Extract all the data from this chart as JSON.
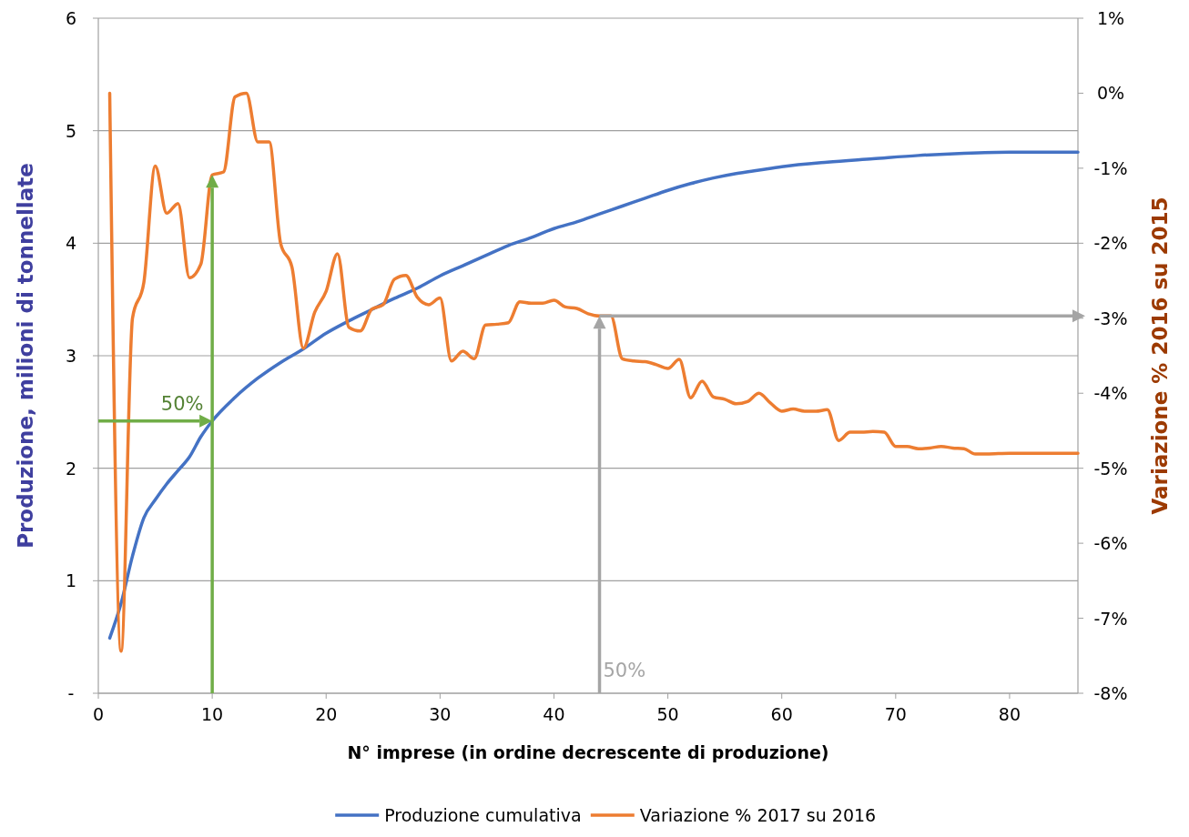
{
  "chart_data": {
    "type": "line",
    "xlabel": "N° imprese (in ordine decrescente di produzione)",
    "ylabel": "Produzione, milioni di tonnellate",
    "y2label": "Variazione % 2016 su 2015",
    "xlim": [
      0,
      86
    ],
    "xticks": [
      0,
      10,
      20,
      30,
      40,
      50,
      60,
      70,
      80
    ],
    "ylim": [
      0,
      6
    ],
    "yticks": [
      {
        "value": 0,
        "label": "-"
      },
      1,
      2,
      3,
      4,
      5,
      6
    ],
    "y2lim": [
      -8,
      1
    ],
    "y2ticks": [
      {
        "value": -8,
        "label": "-8%"
      },
      {
        "value": -7,
        "label": "-7%"
      },
      {
        "value": -6,
        "label": "-6%"
      },
      {
        "value": -5,
        "label": "-5%"
      },
      {
        "value": -4,
        "label": "-4%"
      },
      {
        "value": -3,
        "label": "-3%"
      },
      {
        "value": -2,
        "label": "-2%"
      },
      {
        "value": -1,
        "label": "-1%"
      },
      {
        "value": 0,
        "label": "0%"
      },
      {
        "value": 1,
        "label": "1%"
      }
    ],
    "grid": "y",
    "legend": "bottom",
    "marker": "none",
    "line_style": "solid",
    "series": [
      {
        "name": "Produzione cumulativa",
        "color": "#4472c4",
        "x": [
          1,
          2,
          3,
          4,
          5,
          6,
          7,
          8,
          9,
          10,
          12,
          14,
          16,
          18,
          20,
          22,
          24,
          26,
          28,
          30,
          32,
          34,
          36,
          38,
          40,
          42,
          44,
          46,
          48,
          50,
          52,
          54,
          56,
          58,
          60,
          64,
          68,
          72,
          76,
          80,
          86
        ],
        "values": [
          0.49,
          0.8,
          1.22,
          1.56,
          1.72,
          1.86,
          1.98,
          2.1,
          2.28,
          2.42,
          2.63,
          2.8,
          2.94,
          3.06,
          3.2,
          3.31,
          3.41,
          3.51,
          3.6,
          3.71,
          3.8,
          3.89,
          3.98,
          4.05,
          4.13,
          4.19,
          4.26,
          4.33,
          4.4,
          4.47,
          4.53,
          4.58,
          4.62,
          4.65,
          4.68,
          4.72,
          4.75,
          4.78,
          4.8,
          4.81,
          4.81
        ]
      },
      {
        "name": "Variazione % 2017 su 2016",
        "color": "#ed7d31",
        "axis": "y2",
        "x": [
          1,
          2,
          3,
          4,
          5,
          6,
          7,
          8,
          9,
          10,
          11,
          12,
          13,
          14,
          15,
          16,
          17,
          18,
          19,
          20,
          21,
          22,
          23,
          24,
          25,
          26,
          27,
          28,
          29,
          30,
          31,
          32,
          33,
          34,
          35,
          36,
          37,
          38,
          39,
          40,
          41,
          42,
          43,
          44,
          45,
          46,
          47,
          48,
          49,
          50,
          51,
          52,
          53,
          54,
          55,
          56,
          57,
          58,
          59,
          60,
          61,
          62,
          63,
          64,
          65,
          66,
          67,
          68,
          69,
          70,
          71,
          72,
          73,
          74,
          75,
          76,
          77,
          78,
          80,
          82,
          84,
          86
        ],
        "values": [
          0,
          -7.44,
          -3.0,
          -2.52,
          -0.97,
          -1.6,
          -1.47,
          -2.46,
          -2.28,
          -1.09,
          -1.05,
          -0.05,
          0,
          -0.65,
          -0.65,
          -2.0,
          -2.32,
          -3.4,
          -2.92,
          -2.64,
          -2.14,
          -3.12,
          -3.17,
          -2.88,
          -2.82,
          -2.48,
          -2.43,
          -2.72,
          -2.82,
          -2.73,
          -3.57,
          -3.44,
          -3.54,
          -3.09,
          -3.08,
          -3.06,
          -2.78,
          -2.8,
          -2.8,
          -2.76,
          -2.85,
          -2.87,
          -2.94,
          -2.97,
          -2.97,
          -3.54,
          -3.57,
          -3.58,
          -3.62,
          -3.67,
          -3.55,
          -4.06,
          -3.84,
          -4.05,
          -4.08,
          -4.14,
          -4.11,
          -4.0,
          -4.13,
          -4.24,
          -4.21,
          -4.24,
          -4.24,
          -4.22,
          -4.63,
          -4.52,
          -4.52,
          -4.51,
          -4.52,
          -4.71,
          -4.71,
          -4.74,
          -4.73,
          -4.71,
          -4.73,
          -4.74,
          -4.81,
          -4.81,
          -4.8,
          -4.8,
          -4.8,
          -4.8
        ]
      }
    ],
    "annotations": [
      {
        "text": "50%",
        "x": 10,
        "y": 2.42
      },
      "50%"
    ],
    "ref_lines": [
      {
        "axis": "x",
        "value": 44,
        "color": "#a5a5a5"
      },
      {
        "axis": "y2",
        "value": -2.97,
        "color": "#a5a5a5"
      }
    ]
  }
}
